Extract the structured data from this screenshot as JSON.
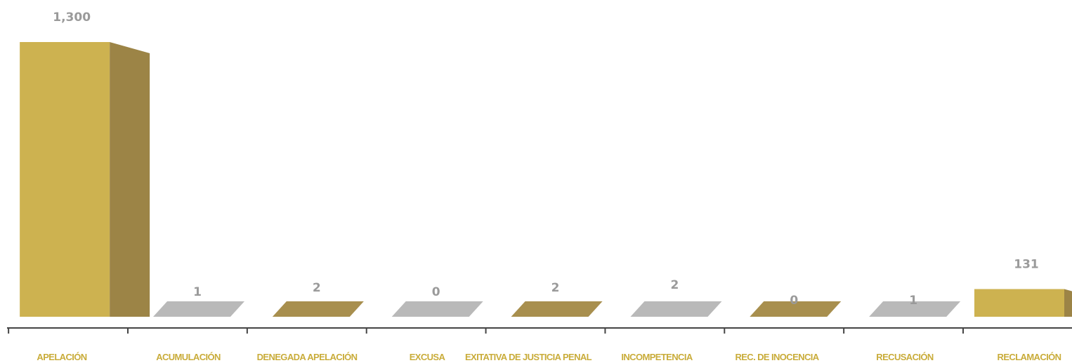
{
  "colors": {
    "gold_front": "#cdb250",
    "gold_side": "#9c8446",
    "gold_top": "#a88f4e",
    "gray_top": "#b9b9b9",
    "dark_side": "#6f6334",
    "reclamacion_front": "#d7bb56",
    "reclamacion_top": "#c7a93d",
    "value_label": "#9a9a9a",
    "category_label": "#c9ac3a",
    "axis": "#444444"
  },
  "chart_data": {
    "type": "bar",
    "title": "",
    "xlabel": "",
    "ylabel": "",
    "categories": [
      "APELACIÓN",
      "ACUMULACIÓN",
      "DENEGADA APELACIÓN",
      "EXCUSA",
      "EXITATIVA DE JUSTICIA PENAL",
      "INCOMPETENCIA",
      "REC. DE INOCENCIA",
      "RECUSACIÓN",
      "RECLAMACIÓN"
    ],
    "values": [
      1300,
      1,
      2,
      0,
      2,
      2,
      0,
      1,
      131
    ],
    "value_labels": [
      "1,300",
      "1",
      "2",
      "0",
      "2",
      "2",
      "0",
      "1",
      "131"
    ],
    "ylim": [
      0,
      1300
    ],
    "grid": false,
    "legend": "none",
    "style": "3d-columns"
  }
}
